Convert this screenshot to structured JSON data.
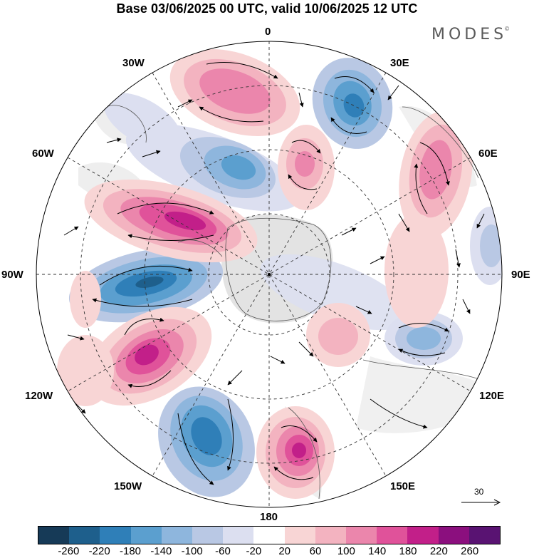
{
  "title": "Base 03/06/2025 00 UTC, valid 10/06/2025 12 UTC",
  "brand": "MODES",
  "brand_mark": "©",
  "longitude_labels": {
    "lon_0": "0",
    "lon_30e": "30E",
    "lon_60e": "60E",
    "lon_90e": "90E",
    "lon_120e": "120E",
    "lon_150e": "150E",
    "lon_180": "180",
    "lon_150w": "150W",
    "lon_120w": "120W",
    "lon_90w": "90W",
    "lon_60w": "60W",
    "lon_30w": "30W"
  },
  "projection": "south polar stereographic",
  "reference_vector": {
    "label": "30"
  },
  "colorbar": {
    "ticks": [
      "-260",
      "-220",
      "-180",
      "-140",
      "-100",
      "-60",
      "-20",
      "20",
      "60",
      "100",
      "140",
      "180",
      "220",
      "260"
    ],
    "colors": [
      "#163a57",
      "#1e5f8c",
      "#2f7fb8",
      "#5b9fcf",
      "#8eb6dd",
      "#b9c8e4",
      "#dcdff0",
      "#ffffff",
      "#f8d5d5",
      "#f3b3c0",
      "#eb86ac",
      "#e0529a",
      "#c21f89",
      "#8b0f7e",
      "#591372"
    ]
  }
}
